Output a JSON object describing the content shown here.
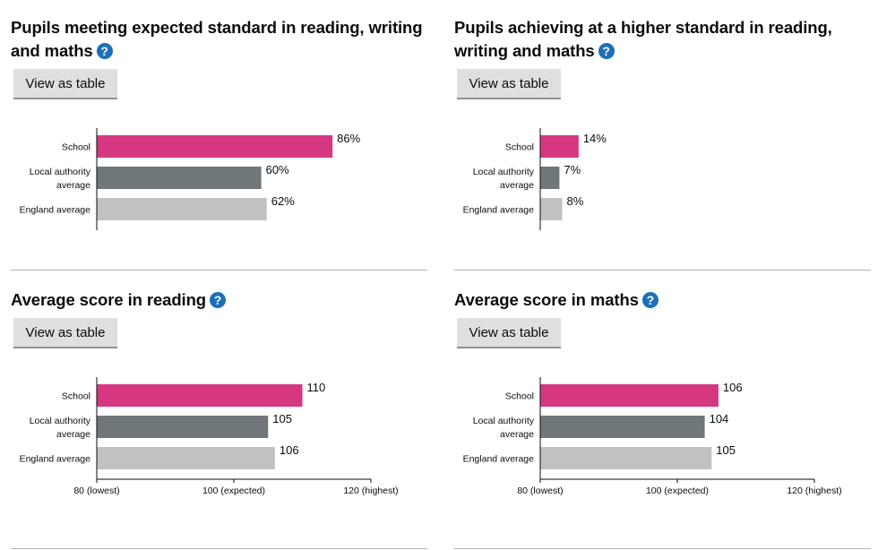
{
  "help_glyph": "?",
  "view_as_table_label": "View as table",
  "chart_data": [
    {
      "type": "bar",
      "title": "Pupils meeting expected standard in reading, writing and maths",
      "categories": [
        [
          "School"
        ],
        [
          "Local authority",
          "average"
        ],
        [
          "England average"
        ]
      ],
      "values": [
        86,
        60,
        62
      ],
      "value_labels": [
        "86%",
        "60%",
        "62%"
      ],
      "colors": [
        "#d53880",
        "#6f777b",
        "#bfc1c3"
      ],
      "xlim": [
        0,
        100
      ],
      "xticks": []
    },
    {
      "type": "bar",
      "title": "Pupils achieving at a higher standard in reading, writing and maths",
      "categories": [
        [
          "School"
        ],
        [
          "Local authority",
          "average"
        ],
        [
          "England average"
        ]
      ],
      "values": [
        14,
        7,
        8
      ],
      "value_labels": [
        "14%",
        "7%",
        "8%"
      ],
      "colors": [
        "#d53880",
        "#6f777b",
        "#bfc1c3"
      ],
      "xlim": [
        0,
        100
      ],
      "xticks": []
    },
    {
      "type": "bar",
      "title": "Average score in reading",
      "categories": [
        [
          "School"
        ],
        [
          "Local authority",
          "average"
        ],
        [
          "England average"
        ]
      ],
      "values": [
        110,
        105,
        106
      ],
      "value_labels": [
        "110",
        "105",
        "106"
      ],
      "colors": [
        "#d53880",
        "#6f777b",
        "#bfc1c3"
      ],
      "xlim": [
        80,
        120
      ],
      "xticks": [
        {
          "value": 80,
          "label": "80 (lowest)"
        },
        {
          "value": 100,
          "label": "100 (expected)"
        },
        {
          "value": 120,
          "label": "120 (highest)"
        }
      ]
    },
    {
      "type": "bar",
      "title": "Average score in maths",
      "categories": [
        [
          "School"
        ],
        [
          "Local authority",
          "average"
        ],
        [
          "England average"
        ]
      ],
      "values": [
        106,
        104,
        105
      ],
      "value_labels": [
        "106",
        "104",
        "105"
      ],
      "colors": [
        "#d53880",
        "#6f777b",
        "#bfc1c3"
      ],
      "xlim": [
        80,
        120
      ],
      "xticks": [
        {
          "value": 80,
          "label": "80 (lowest)"
        },
        {
          "value": 100,
          "label": "100 (expected)"
        },
        {
          "value": 120,
          "label": "120 (highest)"
        }
      ]
    }
  ]
}
